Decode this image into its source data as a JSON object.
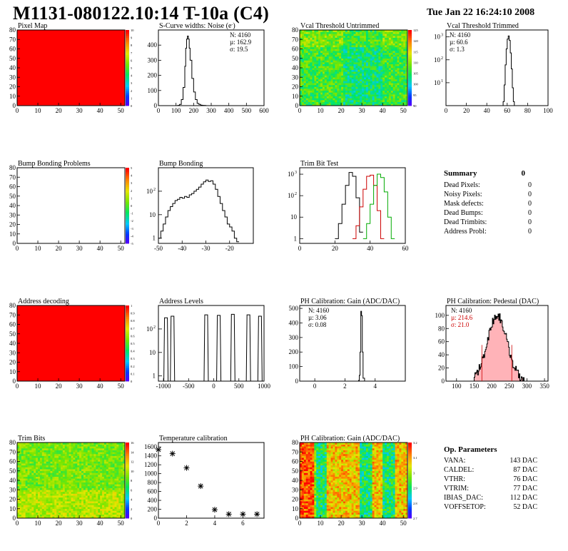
{
  "header": {
    "title": "M1131-080122.10:14 T-10a (C4)",
    "date": "Tue Jan 22 16:24:10 2008"
  },
  "colors": {
    "red": "#ff0000",
    "blue_outline": "#000000",
    "pink_fill": "#ff9aa0",
    "green": "#00aa00"
  },
  "summary": {
    "title": "Summary",
    "total": "0",
    "rows": [
      {
        "label": "Dead Pixels:",
        "value": "0"
      },
      {
        "label": "Noisy Pixels:",
        "value": "0"
      },
      {
        "label": "Mask defects:",
        "value": "0"
      },
      {
        "label": "Dead Bumps:",
        "value": "0"
      },
      {
        "label": "Dead Trimbits:",
        "value": "0"
      },
      {
        "label": "Address Probl:",
        "value": "0"
      }
    ]
  },
  "op_parameters": {
    "title": "Op. Parameters",
    "rows": [
      {
        "label": "VANA:",
        "value": "143 DAC"
      },
      {
        "label": "CALDEL:",
        "value": "87 DAC"
      },
      {
        "label": "VTHR:",
        "value": "76 DAC"
      },
      {
        "label": "VTRIM:",
        "value": "77 DAC"
      },
      {
        "label": "IBIAS_DAC:",
        "value": "112 DAC"
      },
      {
        "label": "VOFFSETOP:",
        "value": "52 DAC"
      }
    ]
  },
  "chart_data": [
    {
      "id": "pixel-map",
      "type": "heatmap",
      "title": "Pixel Map",
      "fill": "uniform-red",
      "xlim": [
        0,
        52
      ],
      "ylim": [
        0,
        80
      ],
      "xticks": [
        "0",
        "10",
        "20",
        "30",
        "40",
        "50"
      ],
      "yticks": [
        "0",
        "10",
        "20",
        "30",
        "40",
        "50",
        "60",
        "70",
        "80"
      ],
      "zticks": [
        "0",
        "1",
        "2",
        "3",
        "4",
        "5",
        "6",
        "7",
        "8",
        "9",
        "10"
      ]
    },
    {
      "id": "scurve-noise",
      "type": "line",
      "title": "S-Curve widths: Noise (e",
      "title_sup": "-",
      "title_end": ")",
      "stats": [
        "N: 4160",
        "µ: 162.9",
        "σ: 19.5"
      ],
      "xlim": [
        0,
        600
      ],
      "ylim": [
        0,
        500
      ],
      "xticks": [
        "0",
        "100",
        "200",
        "300",
        "400",
        "500",
        "600"
      ],
      "yticks": [
        "0",
        "100",
        "200",
        "300",
        "400"
      ],
      "x": [
        100,
        110,
        120,
        130,
        140,
        150,
        155,
        160,
        165,
        170,
        175,
        180,
        190,
        200,
        210,
        220,
        230,
        240,
        250,
        260,
        270,
        280
      ],
      "y": [
        0,
        2,
        8,
        40,
        120,
        260,
        380,
        440,
        460,
        440,
        380,
        300,
        180,
        90,
        40,
        15,
        8,
        3,
        2,
        1,
        0,
        0
      ]
    },
    {
      "id": "vcal-untrimmed",
      "type": "heatmap",
      "title": "Vcal Threshold Untrimmed",
      "xlim": [
        0,
        52
      ],
      "ylim": [
        0,
        80
      ],
      "xticks": [
        "0",
        "10",
        "20",
        "30",
        "40",
        "50"
      ],
      "yticks": [
        "0",
        "10",
        "20",
        "30",
        "40",
        "50",
        "60",
        "70",
        "80"
      ],
      "zticks": [
        "90",
        "95",
        "100",
        "105",
        "110",
        "115",
        "120",
        "125"
      ]
    },
    {
      "id": "vcal-trimmed",
      "type": "line",
      "title": "Vcal Threshold Trimmed",
      "log_y": true,
      "stats": [
        "N: 4160",
        "µ: 60.6",
        "σ:  1.3"
      ],
      "xlim": [
        0,
        100
      ],
      "ylim": [
        1,
        2000
      ],
      "xticks": [
        "0",
        "20",
        "40",
        "60",
        "80",
        "100"
      ],
      "yticks": [
        "10",
        "10",
        "10"
      ],
      "ytick_exp": [
        "1",
        "2",
        "3"
      ],
      "x": [
        55,
        56,
        57,
        58,
        59,
        60,
        61,
        62,
        63,
        64,
        65,
        66,
        67
      ],
      "y": [
        1,
        1.5,
        8,
        60,
        300,
        800,
        1100,
        700,
        200,
        40,
        6,
        1.5,
        1
      ]
    },
    {
      "id": "bump-problems",
      "type": "heatmap",
      "title": "Bump Bonding Problems",
      "fill": "empty",
      "xlim": [
        0,
        52
      ],
      "ylim": [
        0,
        80
      ],
      "xticks": [
        "0",
        "10",
        "20",
        "30",
        "40",
        "50"
      ],
      "yticks": [
        "0",
        "10",
        "20",
        "30",
        "40",
        "50",
        "60",
        "70",
        "80"
      ],
      "zticks": [
        "-5",
        "-4",
        "-3",
        "-2",
        "-1",
        "0",
        "1",
        "2",
        "3",
        "4",
        "5"
      ]
    },
    {
      "id": "bump-bonding",
      "type": "line",
      "title": "Bump Bonding",
      "log_y": true,
      "xlim": [
        -50,
        -10
      ],
      "ylim": [
        0.6,
        1000
      ],
      "xticks": [
        "-50",
        "-40",
        "-30",
        "-20"
      ],
      "yticks": [
        "1",
        "10",
        "10"
      ],
      "ytick_exp": [
        "",
        "",
        "2"
      ],
      "x": [
        -50,
        -49,
        -48,
        -47,
        -46,
        -45,
        -44,
        -43,
        -42,
        -41,
        -40,
        -39,
        -38,
        -37,
        -36,
        -35,
        -34,
        -33,
        -32,
        -31,
        -30,
        -29,
        -28,
        -27,
        -26,
        -25,
        -24,
        -23,
        -22,
        -21,
        -20,
        -19,
        -18,
        -17
      ],
      "y": [
        1,
        2,
        4,
        8,
        15,
        22,
        30,
        40,
        45,
        55,
        50,
        60,
        55,
        70,
        80,
        100,
        120,
        150,
        200,
        250,
        300,
        260,
        280,
        200,
        120,
        60,
        30,
        15,
        8,
        4,
        3,
        2,
        1,
        0.7
      ]
    },
    {
      "id": "trim-bit-test",
      "type": "line",
      "title": "Trim Bit Test",
      "log_y": true,
      "xlim": [
        0,
        60
      ],
      "ylim": [
        0.6,
        2000
      ],
      "xticks": [
        "0",
        "20",
        "40",
        "60"
      ],
      "yticks": [
        "1",
        "10",
        "10",
        "10"
      ],
      "ytick_exp": [
        "",
        "",
        "2",
        "3"
      ],
      "series": [
        {
          "color": "#000000",
          "x": [
            20,
            22,
            24,
            26,
            28,
            30,
            32,
            34
          ],
          "y": [
            1,
            5,
            40,
            300,
            1200,
            800,
            80,
            2
          ]
        },
        {
          "color": "#cc0000",
          "x": [
            30,
            32,
            34,
            36,
            38,
            40,
            42,
            44,
            46
          ],
          "y": [
            1,
            4,
            30,
            200,
            800,
            900,
            300,
            20,
            1
          ]
        },
        {
          "color": "#00aa00",
          "x": [
            36,
            38,
            40,
            42,
            44,
            46,
            48,
            50,
            52
          ],
          "y": [
            1,
            5,
            40,
            300,
            1000,
            700,
            150,
            10,
            1
          ]
        }
      ]
    },
    {
      "id": "address-decoding",
      "type": "heatmap",
      "title": "Address decoding",
      "fill": "uniform-red",
      "xlim": [
        0,
        52
      ],
      "ylim": [
        0,
        80
      ],
      "xticks": [
        "0",
        "10",
        "20",
        "30",
        "40",
        "50"
      ],
      "yticks": [
        "0",
        "10",
        "20",
        "30",
        "40",
        "50",
        "60",
        "70",
        "80"
      ],
      "zticks": [
        "0",
        "0.1",
        "0.2",
        "0.3",
        "0.4",
        "0.5",
        "0.6",
        "0.7",
        "0.8",
        "0.9",
        "1"
      ]
    },
    {
      "id": "address-levels",
      "type": "line",
      "title": "Address Levels",
      "log_y": true,
      "xlim": [
        -1100,
        1000
      ],
      "ylim": [
        0.6,
        1000
      ],
      "xticks": [
        "-1000",
        "-500",
        "0",
        "500",
        "1000"
      ],
      "yticks": [
        "1",
        "10",
        "10"
      ],
      "ytick_exp": [
        "",
        "",
        "2"
      ],
      "peaks": [
        -950,
        -820,
        -150,
        100,
        380,
        690,
        920
      ],
      "peak_heights": [
        300,
        350,
        400,
        380,
        420,
        400,
        350
      ]
    },
    {
      "id": "ph-gain-hist",
      "type": "line",
      "title": "PH Calibration: Gain (ADC/DAC)",
      "stats": [
        "N: 4160",
        "µ: 3.06",
        "σ: 0.08"
      ],
      "xlim": [
        -1,
        6
      ],
      "ylim": [
        0,
        520
      ],
      "xticks": [
        "0",
        "2",
        "4"
      ],
      "yticks": [
        "0",
        "100",
        "200",
        "300",
        "400",
        "500"
      ],
      "x": [
        2.8,
        2.9,
        2.95,
        3.0,
        3.05,
        3.1,
        3.15,
        3.2,
        3.3
      ],
      "y": [
        0,
        5,
        40,
        200,
        480,
        450,
        200,
        20,
        0
      ]
    },
    {
      "id": "ph-pedestal",
      "type": "line",
      "title": "PH Calibration: Pedestal (DAC)",
      "stats": [
        "N: 4160",
        "µ: 214.6",
        "σ: 21.0"
      ],
      "xlim": [
        70,
        360
      ],
      "ylim": [
        0,
        115
      ],
      "xticks": [
        "100",
        "150",
        "200",
        "250",
        "300",
        "350"
      ],
      "yticks": [
        "0",
        "20",
        "40",
        "60",
        "80",
        "100"
      ],
      "fit_lines": [
        172,
        257
      ]
    },
    {
      "id": "temperature-calibration",
      "type": "scatter",
      "title": "Temperature calibration",
      "xlim": [
        0,
        7.5
      ],
      "ylim": [
        0,
        1700
      ],
      "xticks": [
        "0",
        "2",
        "4",
        "6"
      ],
      "yticks": [
        "0",
        "200",
        "400",
        "600",
        "800",
        "1000",
        "1200",
        "1400",
        "1600"
      ],
      "x": [
        0,
        1,
        2,
        3,
        4,
        5,
        6,
        7
      ],
      "y": [
        1540,
        1450,
        1130,
        720,
        190,
        90,
        90,
        90
      ]
    },
    {
      "id": "ph-gain-map",
      "type": "heatmap",
      "title": "PH Calibration: Gain (ADC/DAC)",
      "xlim": [
        0,
        52
      ],
      "ylim": [
        0,
        80
      ],
      "xticks": [
        "0",
        "10",
        "20",
        "30",
        "40",
        "50"
      ],
      "yticks": [
        "0",
        "10",
        "20",
        "30",
        "40",
        "50",
        "60",
        "70",
        "80"
      ],
      "zticks": [
        "2.7",
        "2.8",
        "2.9",
        "3",
        "3.1",
        "3.2"
      ]
    },
    {
      "id": "trim-bits",
      "type": "heatmap",
      "title": "Trim Bits",
      "xlim": [
        0,
        52
      ],
      "ylim": [
        0,
        80
      ],
      "xticks": [
        "0",
        "10",
        "20",
        "30",
        "40",
        "50"
      ],
      "yticks": [
        "0",
        "10",
        "20",
        "30",
        "40",
        "50",
        "60",
        "70",
        "80"
      ],
      "zticks": [
        "0",
        "2",
        "4",
        "6",
        "8",
        "10",
        "12",
        "14",
        "16"
      ]
    }
  ]
}
